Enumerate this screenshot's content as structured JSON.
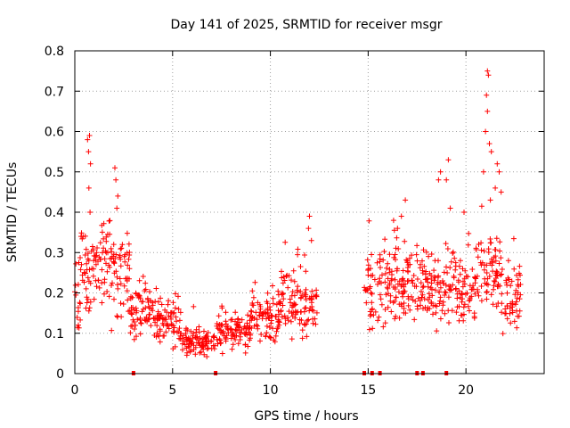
{
  "chart_data": {
    "type": "scatter",
    "title": "Day 141 of 2025, SRMTID for receiver msgr",
    "xlabel": "GPS time / hours",
    "ylabel": "SRMTID / TECUs",
    "xlim": [
      0,
      24
    ],
    "ylim": [
      0,
      0.8
    ],
    "xticks": [
      "0",
      "5",
      "10",
      "15",
      "20"
    ],
    "yticks": [
      "0",
      "0.1",
      "0.2",
      "0.3",
      "0.4",
      "0.5",
      "0.6",
      "0.7",
      "0.8"
    ],
    "grid": true,
    "marker": "+",
    "color": "#ff0000",
    "segments": [
      {
        "from": 0.0,
        "to": 0.3,
        "base": 0.2
      },
      {
        "from": 0.3,
        "to": 1.0,
        "base": 0.24
      },
      {
        "from": 1.0,
        "to": 2.0,
        "base": 0.26
      },
      {
        "from": 2.0,
        "to": 2.8,
        "base": 0.24
      },
      {
        "from": 2.8,
        "to": 4.0,
        "base": 0.16
      },
      {
        "from": 4.0,
        "to": 5.5,
        "base": 0.13
      },
      {
        "from": 5.5,
        "to": 7.2,
        "base": 0.08
      },
      {
        "from": 7.2,
        "to": 9.0,
        "base": 0.1
      },
      {
        "from": 9.0,
        "to": 10.5,
        "base": 0.14
      },
      {
        "from": 10.5,
        "to": 11.5,
        "base": 0.18
      },
      {
        "from": 11.5,
        "to": 12.4,
        "base": 0.17
      },
      {
        "from": 14.8,
        "to": 16.5,
        "base": 0.22
      },
      {
        "from": 16.5,
        "to": 18.0,
        "base": 0.22
      },
      {
        "from": 18.0,
        "to": 19.5,
        "base": 0.22
      },
      {
        "from": 19.5,
        "to": 20.5,
        "base": 0.2
      },
      {
        "from": 20.5,
        "to": 21.8,
        "base": 0.25
      },
      {
        "from": 21.8,
        "to": 22.8,
        "base": 0.19
      }
    ],
    "spikes": [
      {
        "x": 0.65,
        "y": 0.58
      },
      {
        "x": 0.7,
        "y": 0.55
      },
      {
        "x": 0.75,
        "y": 0.59
      },
      {
        "x": 0.8,
        "y": 0.52
      },
      {
        "x": 0.72,
        "y": 0.46
      },
      {
        "x": 0.78,
        "y": 0.4
      },
      {
        "x": 2.05,
        "y": 0.51
      },
      {
        "x": 2.1,
        "y": 0.48
      },
      {
        "x": 2.2,
        "y": 0.44
      },
      {
        "x": 2.15,
        "y": 0.41
      },
      {
        "x": 12.0,
        "y": 0.39
      },
      {
        "x": 11.95,
        "y": 0.36
      },
      {
        "x": 12.1,
        "y": 0.33
      },
      {
        "x": 16.3,
        "y": 0.38
      },
      {
        "x": 16.5,
        "y": 0.36
      },
      {
        "x": 16.9,
        "y": 0.43
      },
      {
        "x": 16.7,
        "y": 0.39
      },
      {
        "x": 18.6,
        "y": 0.48
      },
      {
        "x": 18.7,
        "y": 0.5
      },
      {
        "x": 19.1,
        "y": 0.53
      },
      {
        "x": 19.0,
        "y": 0.48
      },
      {
        "x": 19.2,
        "y": 0.41
      },
      {
        "x": 19.9,
        "y": 0.4
      },
      {
        "x": 20.9,
        "y": 0.5
      },
      {
        "x": 21.1,
        "y": 0.75
      },
      {
        "x": 21.15,
        "y": 0.74
      },
      {
        "x": 21.05,
        "y": 0.69
      },
      {
        "x": 21.1,
        "y": 0.65
      },
      {
        "x": 21.2,
        "y": 0.57
      },
      {
        "x": 21.3,
        "y": 0.55
      },
      {
        "x": 21.0,
        "y": 0.6
      },
      {
        "x": 21.6,
        "y": 0.52
      },
      {
        "x": 21.7,
        "y": 0.5
      },
      {
        "x": 21.8,
        "y": 0.45
      },
      {
        "x": 21.5,
        "y": 0.46
      },
      {
        "x": 21.25,
        "y": 0.43
      }
    ],
    "zero_markers": [
      3.0,
      7.2,
      14.8,
      15.2,
      15.6,
      17.5,
      17.8,
      19.0
    ]
  }
}
